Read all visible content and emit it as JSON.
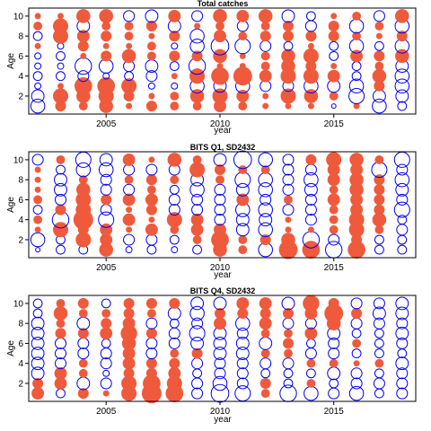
{
  "colors": {
    "positive": "#ef5a3c",
    "negative": "#0000ee"
  },
  "chart_data": [
    {
      "type": "scatter",
      "subtype": "bubble",
      "title": "Total catches",
      "xlabel": "year",
      "ylabel": "Age",
      "xlim": [
        2001.6,
        2018.6
      ],
      "ylim": [
        0.2,
        10.8
      ],
      "x_ticks": [
        2005,
        2010,
        2015
      ],
      "y_ticks": [
        2,
        4,
        6,
        8,
        10
      ],
      "years": [
        2002,
        2003,
        2004,
        2005,
        2006,
        2007,
        2008,
        2009,
        2010,
        2011,
        2012,
        2013,
        2014,
        2015,
        2016,
        2017,
        2018
      ],
      "ages": [
        1,
        2,
        3,
        4,
        5,
        6,
        7,
        8,
        9,
        10
      ],
      "residuals": [
        [
          -0.5,
          0.3,
          0.2,
          0.5,
          0.1,
          0.3,
          0.2,
          0.2,
          0.4,
          0.2,
          0.1,
          0.1,
          0.1,
          -0.05,
          0.1,
          -0.5,
          -0.2
        ],
        [
          -0.4,
          0.6,
          0.5,
          0.6,
          0.3,
          0.1,
          0.2,
          0.5,
          0.6,
          0.4,
          0.1,
          0.6,
          0.5,
          0.2,
          -0.6,
          -0.4,
          -0.4
        ],
        [
          -0.1,
          0.1,
          0.8,
          0.8,
          0.6,
          -0.1,
          -0.1,
          -0.5,
          -0.4,
          -0.5,
          -0.3,
          -0.3,
          -0.5,
          -0.4,
          -0.5,
          0.3,
          -0.5
        ],
        [
          -0.2,
          -0.2,
          -0.3,
          -0.1,
          -0.2,
          -0.3,
          0.1,
          0.6,
          0.8,
          0.9,
          0.4,
          0.6,
          0.6,
          0.4,
          -0.2,
          0.5,
          -0.5
        ],
        [
          -0.1,
          -0.1,
          -0.7,
          -0.5,
          -0.3,
          -0.4,
          -0.2,
          -0.7,
          0.1,
          0.1,
          0.2,
          0.5,
          0.3,
          0.1,
          -0.2,
          0.2,
          -0.4
        ],
        [
          -0.1,
          -0.2,
          0.1,
          0.3,
          0.5,
          0.2,
          0.3,
          0.3,
          0.5,
          0.1,
          0.2,
          0.5,
          0.6,
          -0.2,
          0.4,
          0.3,
          0.5
        ],
        [
          0.1,
          -0.1,
          0.3,
          0.1,
          0.1,
          0.2,
          -0.1,
          -0.5,
          -0.8,
          -0.6,
          -0.3,
          -0.2,
          0.1,
          -0.2,
          -0.5,
          -0.2,
          -0.5
        ],
        [
          -0.2,
          0.6,
          0.4,
          0.3,
          0.2,
          0.1,
          0.3,
          -0.5,
          0.4,
          0.2,
          0.3,
          0.3,
          0.3,
          0.3,
          0.2,
          0.1,
          0.3
        ],
        [
          0.2,
          0.6,
          -0.4,
          0.2,
          0.2,
          0.3,
          -0.4,
          0.1,
          0.2,
          -0.3,
          0.2,
          0.3,
          -0.3,
          0.3,
          -0.5,
          0.2,
          -0.5
        ],
        [
          0.1,
          0.1,
          0.5,
          0.5,
          -0.3,
          -0.4,
          0.4,
          -0.3,
          0.5,
          0.4,
          0.5,
          -0.4,
          -0.2,
          0.1,
          0.2,
          -0.3,
          0.5
        ]
      ]
    },
    {
      "type": "scatter",
      "subtype": "bubble",
      "title": "BITS Q1, SD2432",
      "xlabel": "year",
      "ylabel": "Age",
      "xlim": [
        2001.6,
        2018.6
      ],
      "ylim": [
        0.2,
        10.8
      ],
      "x_ticks": [
        2005,
        2010,
        2015
      ],
      "y_ticks": [
        2,
        4,
        6,
        8,
        10
      ],
      "years": [
        2002,
        2003,
        2004,
        2005,
        2006,
        2007,
        2008,
        2009,
        2010,
        2011,
        2012,
        2013,
        2014,
        2015,
        2016,
        2017,
        2018
      ],
      "ages": [
        1,
        2,
        3,
        4,
        5,
        6,
        7,
        8,
        9,
        10
      ],
      "residuals": [
        [
          -0.05,
          -0.2,
          -0.2,
          0.5,
          -0.1,
          -0.2,
          -0.1,
          -0.2,
          0.5,
          0.2,
          -0.5,
          0.9,
          0.8,
          -0.7,
          0.8,
          -0.2,
          -0.2
        ],
        [
          -0.5,
          -0.2,
          0.6,
          0.4,
          -0.3,
          -0.3,
          -0.2,
          0.2,
          0.8,
          0.2,
          0.3,
          0.5,
          -0.7,
          -0.3,
          0.3,
          -0.2,
          -0.2
        ],
        [
          0.1,
          0.6,
          0.3,
          0.4,
          0.1,
          0.4,
          0.2,
          0.4,
          0.4,
          -0.4,
          -0.5,
          0.1,
          0.1,
          0.2,
          0.6,
          0.2,
          -0.3
        ],
        [
          0.2,
          -0.7,
          1.0,
          -0.6,
          0.4,
          0.1,
          0.6,
          0.4,
          -0.3,
          -0.4,
          -0.4,
          0.1,
          -0.3,
          0.2,
          0.6,
          0.5,
          -0.2
        ],
        [
          -0.2,
          0.3,
          0.6,
          -0.3,
          0.1,
          0.3,
          -0.3,
          -0.3,
          -0.3,
          -0.5,
          -0.5,
          -0.3,
          -0.3,
          0.2,
          0.4,
          0.3,
          -0.6
        ],
        [
          0.2,
          -0.3,
          0.6,
          0.3,
          0.4,
          0.4,
          -0.3,
          -0.3,
          -0.3,
          0.4,
          -0.3,
          0.2,
          -0.3,
          0.4,
          0.4,
          0.3,
          -0.3
        ],
        [
          0.1,
          -0.4,
          0.5,
          -0.3,
          -0.3,
          0.2,
          -0.2,
          -0.5,
          -0.3,
          -0.4,
          -0.5,
          -0.3,
          -0.4,
          0.2,
          0.5,
          0.3,
          -0.4
        ],
        [
          0.1,
          -0.4,
          0.2,
          -0.3,
          0.2,
          0.3,
          0.2,
          -0.4,
          0.2,
          -0.6,
          -0.5,
          -0.3,
          -0.5,
          0.4,
          0.5,
          0.3,
          -0.5
        ],
        [
          0.1,
          -0.2,
          -0.5,
          -0.5,
          -0.3,
          -0.3,
          -0.3,
          0.6,
          0.3,
          0.2,
          0.2,
          -0.3,
          -0.3,
          0.4,
          0.4,
          -0.6,
          -0.3
        ],
        [
          -0.3,
          0.2,
          -0.6,
          -0.4,
          0.4,
          0.1,
          0.5,
          0.2,
          -0.4,
          -0.8,
          -0.5,
          -0.3,
          0.3,
          0.6,
          0.5,
          0.2,
          -0.6
        ]
      ]
    },
    {
      "type": "scatter",
      "subtype": "bubble",
      "title": "BITS Q4, SD2432",
      "xlabel": "year",
      "ylabel": "Age",
      "xlim": [
        2001.6,
        2018.6
      ],
      "ylim": [
        0.2,
        10.8
      ],
      "x_ticks": [
        2005,
        2010,
        2015
      ],
      "y_ticks": [
        2,
        4,
        6,
        8,
        10
      ],
      "years": [
        2002,
        2003,
        2004,
        2005,
        2006,
        2007,
        2008,
        2009,
        2010,
        2011,
        2012,
        2013,
        2014,
        2015,
        2016,
        2017,
        2018
      ],
      "ages": [
        1,
        2,
        3,
        4,
        5,
        6,
        7,
        8,
        9,
        10
      ],
      "residuals": [
        [
          0.4,
          -0.2,
          0.3,
          0.1,
          0.6,
          1.0,
          0.8,
          -0.3,
          -0.8,
          -0.6,
          0.2,
          -0.7,
          -0.5,
          -0.3,
          -0.5,
          -0.2,
          -0.3
        ],
        [
          0.3,
          0.4,
          -0.4,
          -0.3,
          0.6,
          0.8,
          0.6,
          -0.3,
          -0.5,
          -0.3,
          0.3,
          -0.2,
          0.2,
          -0.2,
          -0.3,
          -0.3,
          -0.3
        ],
        [
          -0.4,
          0.4,
          0.2,
          -0.1,
          0.3,
          0.3,
          0.4,
          -0.2,
          -0.3,
          -0.3,
          -0.2,
          -0.2,
          -0.2,
          -0.4,
          -0.3,
          -0.2,
          -0.3
        ],
        [
          -0.4,
          -0.3,
          0.2,
          -0.3,
          0.4,
          0.3,
          0.3,
          -0.3,
          -0.3,
          -0.3,
          -0.3,
          -0.3,
          0.2,
          0.2,
          0.1,
          0.2,
          -0.4
        ],
        [
          -0.4,
          -0.3,
          -0.3,
          -0.3,
          0.4,
          -0.3,
          0.2,
          0.3,
          -0.4,
          -0.4,
          0.2,
          0.2,
          -0.3,
          -0.3,
          -0.2,
          -0.2,
          -0.2
        ],
        [
          -0.4,
          -0.3,
          -0.3,
          -0.2,
          0.5,
          -0.3,
          -0.3,
          -0.4,
          -0.4,
          -0.4,
          -0.4,
          0.3,
          -0.2,
          -0.3,
          0.2,
          -0.2,
          -0.3
        ],
        [
          -0.4,
          0.3,
          0.3,
          0.4,
          0.7,
          0.3,
          -0.3,
          -0.6,
          -0.4,
          -0.3,
          0.2,
          0.2,
          0.4,
          -0.4,
          -0.2,
          -0.2,
          -0.4
        ],
        [
          -0.4,
          0.2,
          -0.4,
          0.3,
          0.4,
          -0.3,
          -0.2,
          -0.3,
          0.4,
          -0.5,
          0.4,
          -0.3,
          -0.3,
          0.5,
          -0.3,
          -0.3,
          -0.3
        ],
        [
          -0.2,
          0.5,
          0.2,
          0.2,
          0.3,
          0.2,
          -0.4,
          -0.5,
          0.3,
          0.3,
          0.3,
          0.3,
          0.4,
          0.9,
          0.3,
          -0.4,
          -0.4
        ],
        [
          -0.2,
          0.2,
          0.3,
          -0.2,
          0.3,
          0.3,
          0.3,
          -0.4,
          -0.4,
          0.4,
          0.4,
          -0.4,
          0.7,
          0.3,
          -0.3,
          -0.3,
          -0.4
        ]
      ]
    }
  ]
}
